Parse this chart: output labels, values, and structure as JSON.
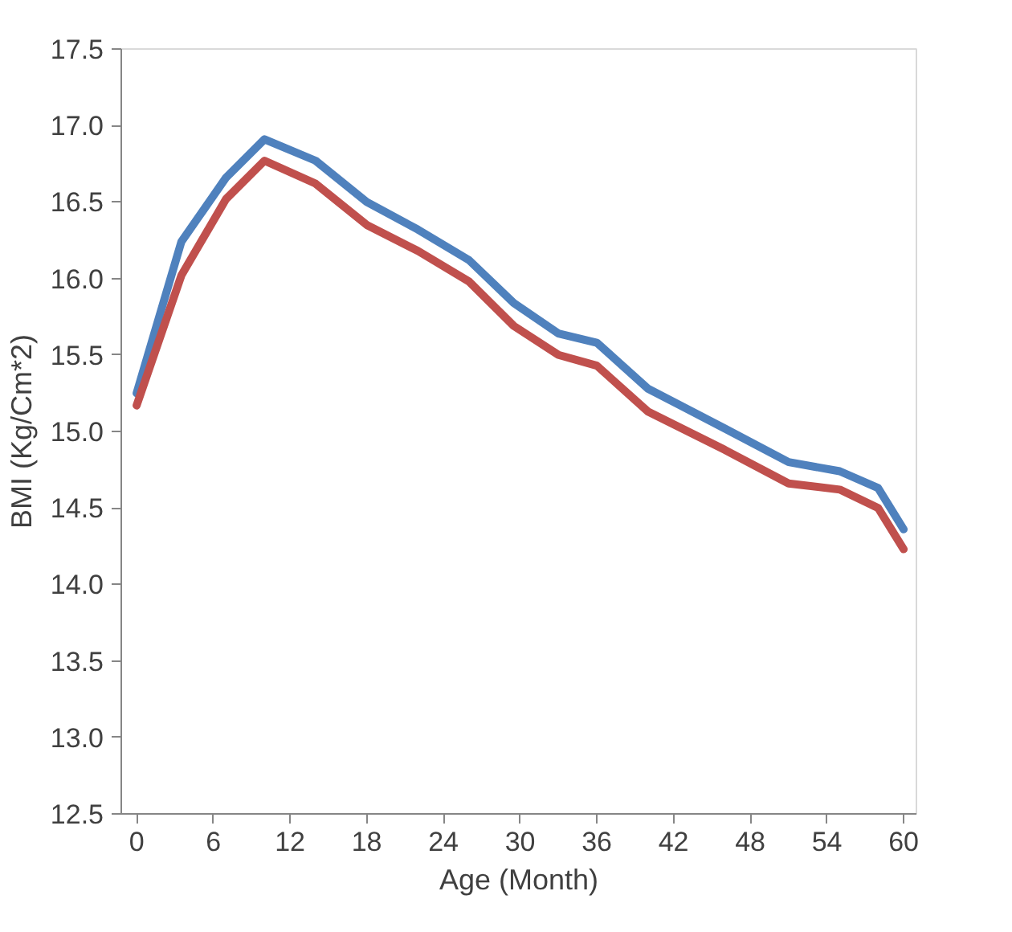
{
  "chart_data": {
    "type": "line",
    "xlabel": "Age (Month)",
    "ylabel": "BMI (Kg/Cm*2)",
    "x": [
      0,
      3.5,
      7,
      10,
      14,
      18,
      22,
      26,
      29.5,
      33,
      36,
      40,
      46,
      51,
      55,
      58,
      60
    ],
    "series": [
      {
        "color": "#4f81bd",
        "values": [
          15.25,
          16.24,
          16.66,
          16.91,
          16.77,
          16.5,
          16.32,
          16.12,
          15.84,
          15.64,
          15.58,
          15.28,
          15.02,
          14.8,
          14.74,
          14.63,
          14.36
        ]
      },
      {
        "color": "#c0504d",
        "values": [
          15.17,
          16.02,
          16.52,
          16.77,
          16.62,
          16.35,
          16.18,
          15.98,
          15.69,
          15.5,
          15.43,
          15.13,
          14.88,
          14.66,
          14.62,
          14.5,
          14.23
        ]
      }
    ],
    "xlim": [
      -1.2,
      61
    ],
    "xticks": [
      0,
      6,
      12,
      18,
      24,
      30,
      36,
      42,
      48,
      54,
      60
    ],
    "ylim": [
      12.5,
      17.5
    ],
    "yticks": [
      {
        "value": 12.5,
        "label": "12.5"
      },
      {
        "value": 13,
        "label": "13.0"
      },
      {
        "value": 13.5,
        "label": "13.5"
      },
      {
        "value": 14,
        "label": "14.0"
      },
      {
        "value": 14.5,
        "label": "14.5"
      },
      {
        "value": 15,
        "label": "15.0"
      },
      {
        "value": 15.5,
        "label": "15.5"
      },
      {
        "value": 16,
        "label": "16.0"
      },
      {
        "value": 16.5,
        "label": "16.5"
      },
      {
        "value": 17,
        "label": "17.0"
      },
      {
        "value": 17.5,
        "label": "17.5"
      }
    ],
    "grid": false,
    "marker": "none",
    "line_style": "solid"
  }
}
